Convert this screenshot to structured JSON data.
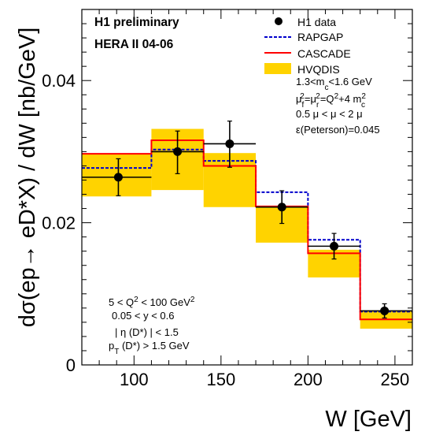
{
  "chart_data": {
    "type": "histogram",
    "xlabel": "W [GeV]",
    "ylabel": "dσ(ep→ eD*X) / dW [nb/GeV]",
    "xlim": [
      70,
      260
    ],
    "ylim": [
      0,
      0.05
    ],
    "xticks": [
      100,
      150,
      200,
      250
    ],
    "xtick_labels": [
      "100",
      "150",
      "200",
      "250"
    ],
    "yticks": [
      0,
      0.02,
      0.04
    ],
    "ytick_labels": [
      "0",
      "0.02",
      "0.04"
    ],
    "bin_edges": [
      70,
      110,
      140,
      170,
      200,
      230,
      260
    ],
    "series": [
      {
        "name": "HVQDIS",
        "style": "band",
        "color": "#FFD300",
        "low": [
          0.0237,
          0.0246,
          0.0222,
          0.0172,
          0.0123,
          0.0051
        ],
        "high": [
          0.0297,
          0.0332,
          0.0298,
          0.0224,
          0.0162,
          0.0076
        ]
      },
      {
        "name": "RAPGAP",
        "style": "dashed-step",
        "color": "#0000CC",
        "values": [
          0.0277,
          0.0303,
          0.0287,
          0.0243,
          0.0176,
          0.0075
        ]
      },
      {
        "name": "CASCADE",
        "style": "step",
        "color": "#FF0000",
        "values": [
          0.0297,
          0.0316,
          0.028,
          0.0223,
          0.0157,
          0.0064
        ]
      },
      {
        "name": "H1 data",
        "style": "points",
        "color": "#000000",
        "x": [
          91,
          125,
          155,
          185,
          215,
          244
        ],
        "y": [
          0.0264,
          0.03,
          0.0311,
          0.0222,
          0.0167,
          0.0076
        ],
        "yerr_low": [
          0.0026,
          0.0031,
          0.0033,
          0.0023,
          0.0018,
          0.001
        ],
        "yerr_high": [
          0.0026,
          0.0029,
          0.0032,
          0.0023,
          0.0018,
          0.001
        ]
      }
    ],
    "legend": {
      "placement": "top-right",
      "entries": [
        {
          "key": "H1 data",
          "label": "H1 data"
        },
        {
          "key": "RAPGAP",
          "label": "RAPGAP"
        },
        {
          "key": "CASCADE",
          "label": "CASCADE"
        },
        {
          "key": "HVQDIS",
          "label": "HVQDIS"
        }
      ]
    },
    "annotations": {
      "experiment": "H1 preliminary",
      "period": "HERA II 04-06",
      "params": [
        "1.3<m",
        "<1.6 GeV",
        "=Q",
        "+4 m",
        "0.5 μ < μ < 2 μ",
        "ε(Peterson)=0.045"
      ],
      "cuts": [
        "5 < Q",
        " < 100 GeV",
        "0.05 < y < 0.6",
        "| η (D*) | < 1.5",
        "p",
        " (D*) > 1.5 GeV"
      ],
      "subscripts": {
        "c": "c",
        "f": "f",
        "r": "r",
        "T": "T"
      },
      "superscripts": {
        "two": "2"
      },
      "mu": "μ"
    }
  }
}
